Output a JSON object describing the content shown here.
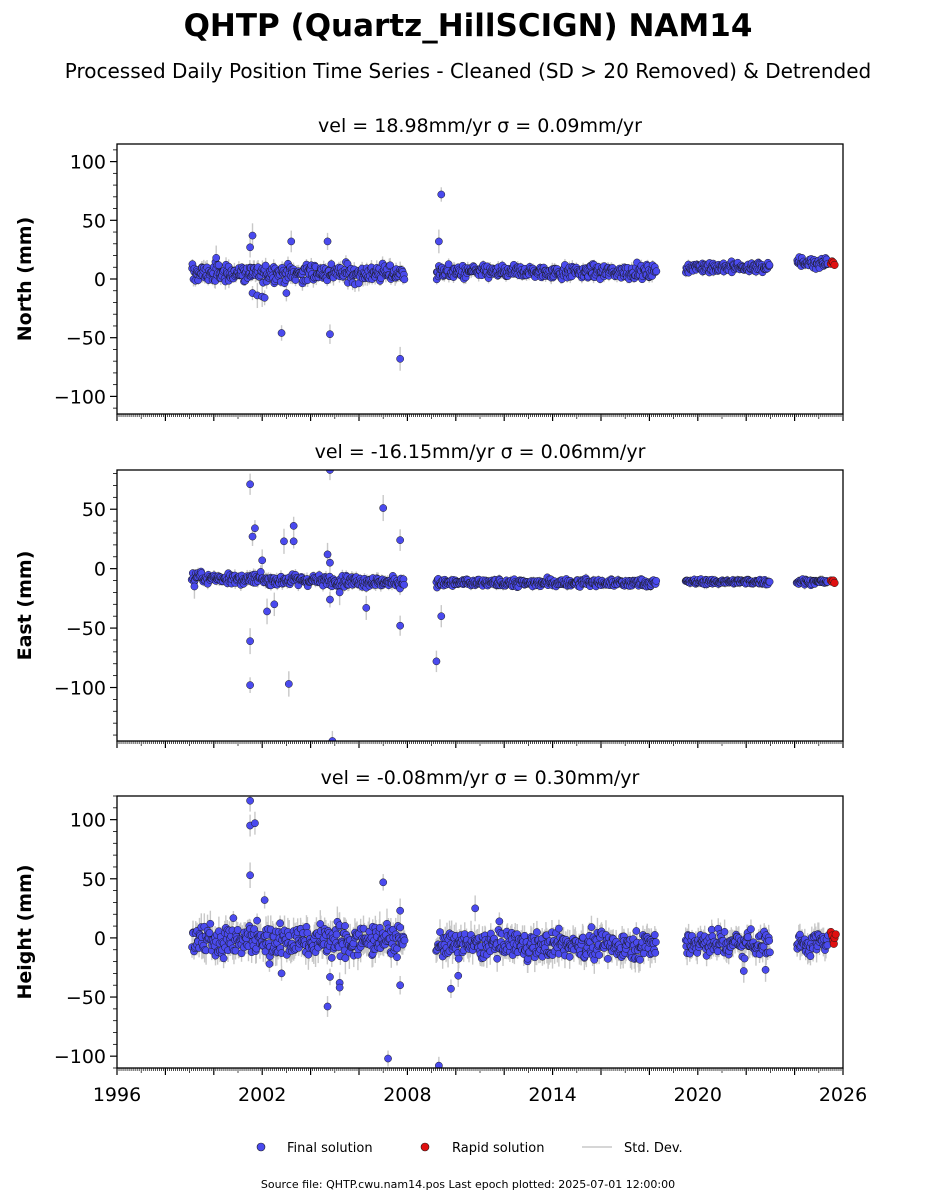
{
  "figure": {
    "title": "QHTP (Quartz_HillSCIGN) NAM14",
    "subtitle": "Processed Daily Position Time Series - Cleaned (SD > 20 Removed) & Detrended",
    "footer": "Source file: QHTP.cwu.nam14.pos  Last epoch plotted: 2025-07-01 12:00:00",
    "colors": {
      "final": "#4a4aee",
      "rapid": "#e01010",
      "stddev": "#c8c8c8",
      "edge": "#1a1a1a"
    }
  },
  "legend": {
    "placement": "bottom-center",
    "final": "Final solution",
    "rapid": "Rapid solution",
    "stddev": "Std. Dev."
  },
  "chart_data": [
    {
      "type": "scatter",
      "title": "vel = 18.98mm/yr   σ = 0.09mm/yr",
      "ylabel": "North (mm)",
      "xlim": [
        1996,
        2026
      ],
      "ylim": [
        -115,
        115
      ],
      "yticks": [
        -100,
        -50,
        0,
        50,
        100
      ],
      "xticks": [
        1996,
        2002,
        2008,
        2014,
        2020,
        2026
      ],
      "xtick_labels_shown": false,
      "segments": [
        {
          "start": 1999.1,
          "end": 2007.9,
          "center": 5,
          "spread": 7,
          "sd": 5
        },
        {
          "start": 2009.2,
          "end": 2018.3,
          "center": 6,
          "spread": 5,
          "sd": 4
        },
        {
          "start": 2019.5,
          "end": 2023.0,
          "center": 10,
          "spread": 4,
          "sd": 3
        },
        {
          "start": 2024.1,
          "end": 2025.4,
          "center": 14,
          "spread": 4,
          "sd": 3
        }
      ],
      "outliers": [
        {
          "x": 2001.5,
          "y": 27
        },
        {
          "x": 2001.6,
          "y": 37
        },
        {
          "x": 2001.6,
          "y": -12
        },
        {
          "x": 2001.8,
          "y": -14
        },
        {
          "x": 2002.0,
          "y": -15
        },
        {
          "x": 2002.1,
          "y": -16
        },
        {
          "x": 2002.8,
          "y": -46
        },
        {
          "x": 2003.2,
          "y": 32
        },
        {
          "x": 2003.0,
          "y": -12
        },
        {
          "x": 2004.7,
          "y": 32
        },
        {
          "x": 2004.8,
          "y": -47
        },
        {
          "x": 2007.7,
          "y": -68
        },
        {
          "x": 2009.3,
          "y": 32
        },
        {
          "x": 2009.4,
          "y": 72
        },
        {
          "x": 2000.1,
          "y": 18
        }
      ],
      "rapid": [
        {
          "x": 2025.5,
          "y": 13
        },
        {
          "x": 2025.55,
          "y": 15
        },
        {
          "x": 2025.6,
          "y": 14
        },
        {
          "x": 2025.65,
          "y": 12
        }
      ]
    },
    {
      "type": "scatter",
      "title": "vel = -16.15mm/yr   σ = 0.06mm/yr",
      "ylabel": "East (mm)",
      "xlim": [
        1996,
        2026
      ],
      "ylim": [
        -145,
        83
      ],
      "yticks": [
        -100,
        -50,
        0,
        50
      ],
      "xticks": [
        1996,
        2002,
        2008,
        2014,
        2020,
        2026
      ],
      "xtick_labels_shown": false,
      "segments": [
        {
          "start": 1999.1,
          "end": 2007.9,
          "center": -8,
          "spread": 4,
          "sd": 4,
          "slope": -0.4
        },
        {
          "start": 2009.2,
          "end": 2018.3,
          "center": -12,
          "spread": 3,
          "sd": 3
        },
        {
          "start": 2019.5,
          "end": 2023.0,
          "center": -11,
          "spread": 2,
          "sd": 3
        },
        {
          "start": 2024.1,
          "end": 2025.4,
          "center": -11,
          "spread": 2,
          "sd": 3
        }
      ],
      "outliers": [
        {
          "x": 1999.2,
          "y": -15
        },
        {
          "x": 2001.5,
          "y": 71
        },
        {
          "x": 2001.5,
          "y": -61
        },
        {
          "x": 2001.5,
          "y": -98
        },
        {
          "x": 2001.6,
          "y": 27
        },
        {
          "x": 2001.7,
          "y": 34
        },
        {
          "x": 2002.0,
          "y": 7
        },
        {
          "x": 2002.2,
          "y": -36
        },
        {
          "x": 2002.5,
          "y": -30
        },
        {
          "x": 2002.9,
          "y": 23
        },
        {
          "x": 2003.1,
          "y": -97
        },
        {
          "x": 2003.3,
          "y": 36
        },
        {
          "x": 2003.3,
          "y": 23
        },
        {
          "x": 2004.7,
          "y": 12
        },
        {
          "x": 2004.8,
          "y": 5
        },
        {
          "x": 2004.8,
          "y": 83
        },
        {
          "x": 2004.8,
          "y": -26
        },
        {
          "x": 2004.9,
          "y": -145
        },
        {
          "x": 2005.2,
          "y": -20
        },
        {
          "x": 2006.3,
          "y": -33
        },
        {
          "x": 2007.0,
          "y": 51
        },
        {
          "x": 2007.7,
          "y": 24
        },
        {
          "x": 2007.7,
          "y": -48
        },
        {
          "x": 2009.2,
          "y": -78
        },
        {
          "x": 2009.4,
          "y": -40
        }
      ],
      "rapid": [
        {
          "x": 2025.5,
          "y": -10
        },
        {
          "x": 2025.55,
          "y": -11
        },
        {
          "x": 2025.6,
          "y": -10
        },
        {
          "x": 2025.65,
          "y": -12
        }
      ]
    },
    {
      "type": "scatter",
      "title": "vel = -0.08mm/yr   σ = 0.30mm/yr",
      "ylabel": "Height (mm)",
      "xlim": [
        1996,
        2026
      ],
      "ylim": [
        -110,
        120
      ],
      "yticks": [
        -100,
        -50,
        0,
        50,
        100
      ],
      "xticks": [
        1996,
        2002,
        2008,
        2014,
        2020,
        2026
      ],
      "xtick_labels_shown": true,
      "segments": [
        {
          "start": 1999.1,
          "end": 2007.9,
          "center": -2,
          "spread": 12,
          "sd": 10
        },
        {
          "start": 2009.2,
          "end": 2018.3,
          "center": -6,
          "spread": 10,
          "sd": 9
        },
        {
          "start": 2019.5,
          "end": 2023.0,
          "center": -4,
          "spread": 10,
          "sd": 8
        },
        {
          "start": 2024.1,
          "end": 2025.4,
          "center": -4,
          "spread": 9,
          "sd": 8
        }
      ],
      "outliers": [
        {
          "x": 2001.5,
          "y": 116
        },
        {
          "x": 2001.5,
          "y": 95
        },
        {
          "x": 2001.7,
          "y": 97
        },
        {
          "x": 2001.5,
          "y": 53
        },
        {
          "x": 2002.1,
          "y": 32
        },
        {
          "x": 2002.3,
          "y": -22
        },
        {
          "x": 2002.8,
          "y": -30
        },
        {
          "x": 2004.7,
          "y": -58
        },
        {
          "x": 2004.8,
          "y": -33
        },
        {
          "x": 2005.2,
          "y": -38
        },
        {
          "x": 2005.2,
          "y": -42
        },
        {
          "x": 2007.0,
          "y": 47
        },
        {
          "x": 2007.2,
          "y": -102
        },
        {
          "x": 2007.7,
          "y": -40
        },
        {
          "x": 2007.7,
          "y": 23
        },
        {
          "x": 2009.3,
          "y": -108
        },
        {
          "x": 2009.8,
          "y": -43
        },
        {
          "x": 2010.1,
          "y": -32
        },
        {
          "x": 2010.8,
          "y": 25
        },
        {
          "x": 2011.8,
          "y": 14
        },
        {
          "x": 2021.9,
          "y": -28
        },
        {
          "x": 2022.8,
          "y": -27
        }
      ],
      "rapid": [
        {
          "x": 2025.5,
          "y": 5
        },
        {
          "x": 2025.55,
          "y": 2
        },
        {
          "x": 2025.6,
          "y": -2
        },
        {
          "x": 2025.62,
          "y": -5
        },
        {
          "x": 2025.65,
          "y": 0
        },
        {
          "x": 2025.7,
          "y": 3
        }
      ]
    }
  ]
}
